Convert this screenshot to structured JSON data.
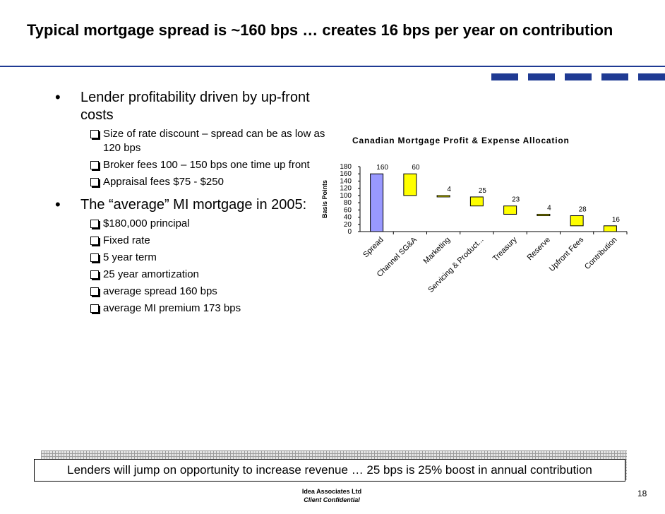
{
  "slide": {
    "title": "Typical mortgage spread is ~160 bps … creates 16 bps per year on contribution",
    "bullets": [
      {
        "text": "Lender profitability driven by up-front costs",
        "sub": [
          "Size of rate discount – spread can be as low as 120 bps",
          "Broker fees 100 – 150 bps one time up front",
          "Appraisal fees  $75 - $250"
        ]
      },
      {
        "text": "The “average” MI mortgage in 2005:",
        "sub": [
          "$180,000 principal",
          "Fixed rate",
          "5 year term",
          "25 year amortization",
          "average spread 160 bps",
          "average MI premium 173 bps"
        ]
      }
    ],
    "banner": "Lenders will jump on opportunity to increase revenue … 25 bps is 25% boost in annual contribution",
    "footer": {
      "company": "Idea Associates Ltd",
      "confidential": "Client Confidential",
      "page": "18"
    },
    "colors": {
      "accent": "#1f3a93",
      "spread_bar": "#9999ff",
      "waterfall_bar": "#ffff00"
    }
  },
  "chart_data": {
    "type": "bar",
    "subtype": "waterfall",
    "title": "Canadian Mortgage Profit & Expense Allocation",
    "xlabel": "",
    "ylabel": "Basis Points",
    "ylim": [
      0,
      180
    ],
    "yticks": [
      0,
      20,
      40,
      60,
      80,
      100,
      120,
      140,
      160,
      180
    ],
    "categories": [
      "Spread",
      "Channel SG&A",
      "Marketing",
      "Servicing & Product...",
      "Treasury",
      "Reserve",
      "Upfront Fees",
      "Contribution"
    ],
    "values": [
      160,
      60,
      4,
      25,
      23,
      4,
      28,
      16
    ],
    "ranges": [
      [
        0,
        160
      ],
      [
        100,
        160
      ],
      [
        96,
        100
      ],
      [
        71,
        96
      ],
      [
        48,
        71
      ],
      [
        44,
        48
      ],
      [
        16,
        44
      ],
      [
        0,
        16
      ]
    ],
    "data_labels": [
      "160",
      "60",
      "4",
      "25",
      "23",
      "4",
      "28",
      "16"
    ],
    "grid": false,
    "legend": "none"
  }
}
